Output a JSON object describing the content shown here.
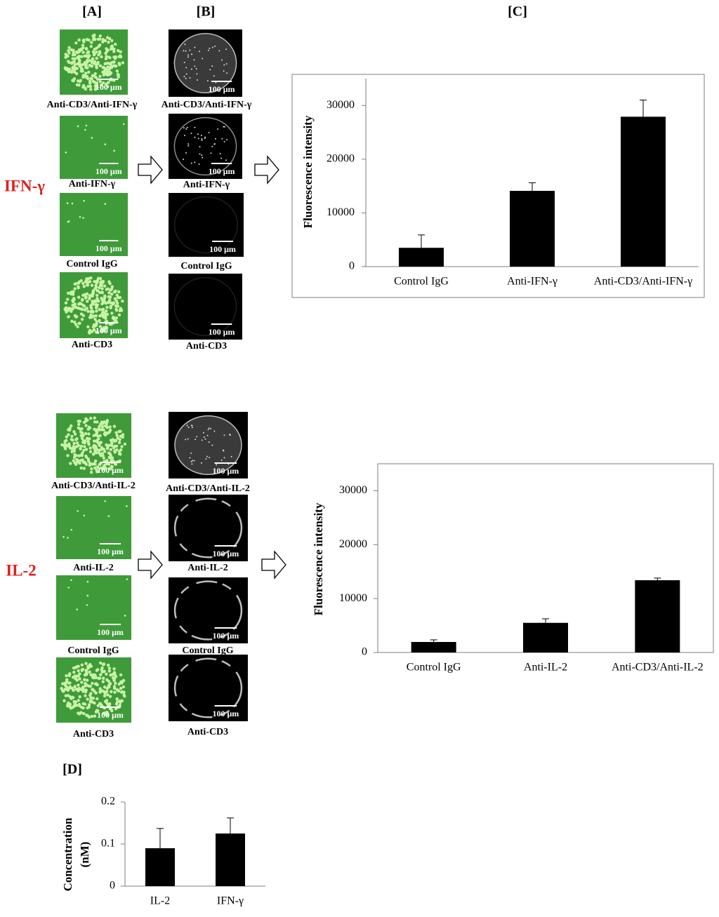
{
  "figure": {
    "panel_labels": [
      "[A]",
      "[B]",
      "[C]",
      "[D]"
    ],
    "row_labels": [
      "IFN-γ",
      "IL-2"
    ],
    "scale_bar": "100 μm",
    "groups": [
      {
        "a_captions": [
          "Anti-CD3/Anti-IFN-γ",
          "Anti-IFN-γ",
          "Control IgG",
          "Anti-CD3"
        ],
        "b_captions": [
          "Anti-CD3/Anti-IFN-γ",
          "Anti-IFN-γ",
          "Control IgG",
          "Anti-CD3"
        ]
      },
      {
        "a_captions": [
          "Anti-CD3/Anti-IL-2",
          "Anti-IL-2",
          "Control IgG",
          "Anti-CD3"
        ],
        "b_captions": [
          "Anti-CD3/Anti-IL-2",
          "Anti-IL-2",
          "Control IgG",
          "Anti-CD3"
        ]
      }
    ]
  },
  "chart_data": [
    {
      "type": "bar",
      "y_label": "Fluorescence intensity",
      "categories": [
        "Control IgG",
        "Anti-IFN-γ",
        "Anti-CD3/Anti-IFN-γ"
      ],
      "series": [
        {
          "color": "#000000",
          "values": [
            3500,
            14100,
            27900
          ],
          "errors": [
            2400,
            1500,
            3100
          ]
        }
      ],
      "ylim": [
        0,
        35000
      ],
      "yticks": [
        0,
        10000,
        20000,
        30000
      ]
    },
    {
      "type": "bar",
      "y_label": "Fluorescence intensity",
      "categories": [
        "Control IgG",
        "Anti-IL-2",
        "Anti-CD3/Anti-IL-2"
      ],
      "series": [
        {
          "color": "#000000",
          "values": [
            1950,
            5500,
            13400
          ],
          "errors": [
            400,
            750,
            400
          ]
        }
      ],
      "ylim": [
        0,
        35000
      ],
      "yticks": [
        0,
        10000,
        20000,
        30000
      ]
    },
    {
      "type": "bar",
      "y_label_lines": [
        "Concentration",
        "(nM)"
      ],
      "categories": [
        "IL-2",
        "IFN-γ"
      ],
      "series": [
        {
          "color": "#000000",
          "values": [
            0.09,
            0.125
          ],
          "errors": [
            0.047,
            0.037
          ]
        }
      ],
      "ylim": [
        0,
        0.2
      ],
      "yticks": [
        0,
        0.1,
        0.2
      ]
    }
  ]
}
